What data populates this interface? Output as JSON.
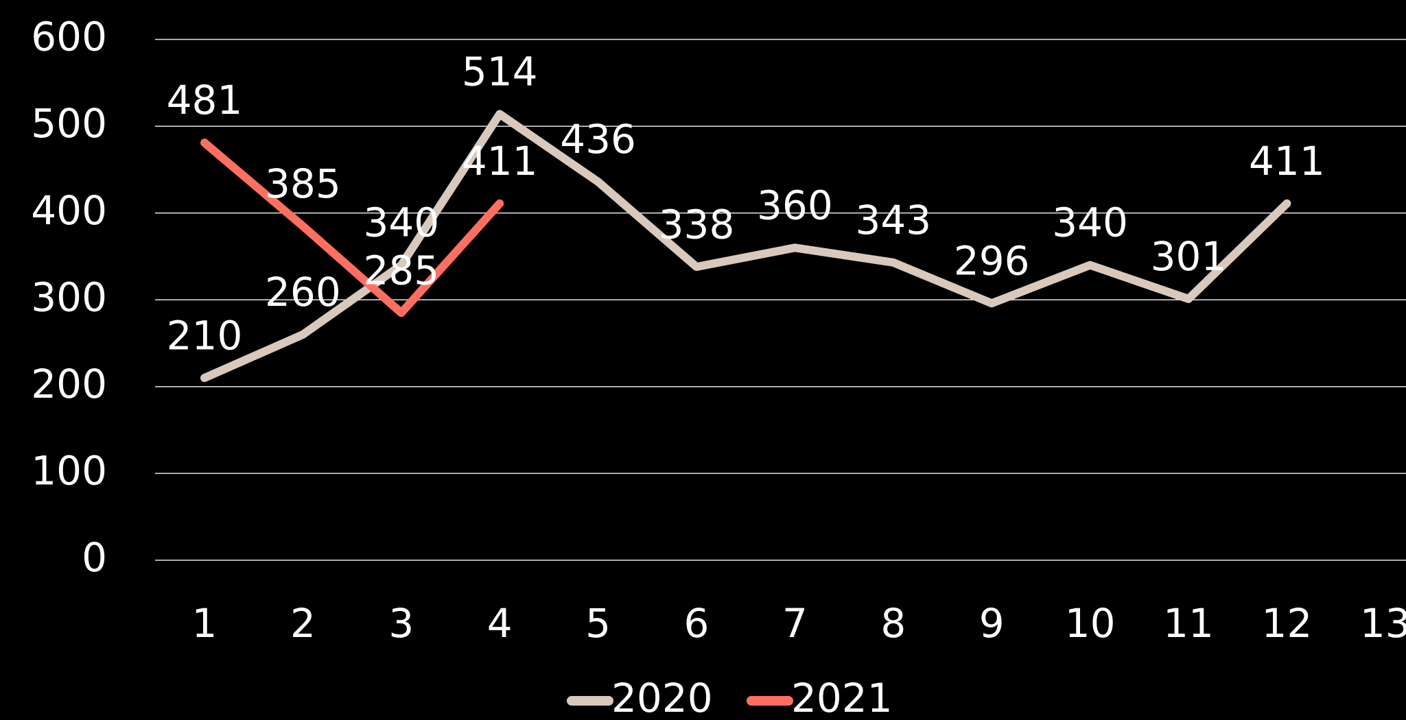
{
  "chart_data": {
    "type": "line",
    "categories": [
      "1",
      "2",
      "3",
      "4",
      "5",
      "6",
      "7",
      "8",
      "9",
      "10",
      "11",
      "12",
      "13"
    ],
    "series": [
      {
        "name": "2020",
        "color": "#d9c9bd",
        "values": [
          210,
          260,
          340,
          514,
          436,
          338,
          360,
          343,
          296,
          340,
          301,
          411,
          null
        ]
      },
      {
        "name": "2021",
        "color": "#ff6f61",
        "values": [
          481,
          385,
          285,
          411,
          null,
          null,
          null,
          null,
          null,
          null,
          null,
          null,
          null
        ]
      }
    ],
    "ylim": [
      0,
      600
    ],
    "yticks": [
      0,
      100,
      200,
      300,
      400,
      500,
      600
    ],
    "grid": true,
    "legend": "bottom"
  }
}
